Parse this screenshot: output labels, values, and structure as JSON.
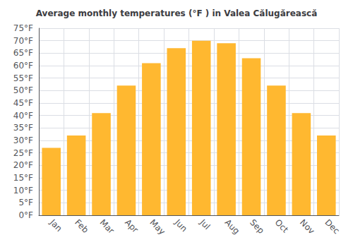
{
  "chart_data": {
    "type": "bar",
    "title": "Average monthly temperatures (°F ) in Valea Călugărească",
    "categories": [
      "Jan",
      "Feb",
      "Mar",
      "Apr",
      "May",
      "Jun",
      "Jul",
      "Aug",
      "Sep",
      "Oct",
      "Nov",
      "Dec"
    ],
    "values": [
      27,
      32,
      41,
      52,
      61,
      67,
      70,
      69,
      63,
      52,
      41,
      32
    ],
    "color": "#FFB830",
    "ylim": [
      0,
      75
    ],
    "yticks": [
      {
        "value": 0,
        "label": "0°F"
      },
      {
        "value": 5,
        "label": "5°F"
      },
      {
        "value": 10,
        "label": "10°F"
      },
      {
        "value": 15,
        "label": "15°F"
      },
      {
        "value": 20,
        "label": "20°F"
      },
      {
        "value": 25,
        "label": "25°F"
      },
      {
        "value": 30,
        "label": "30°F"
      },
      {
        "value": 35,
        "label": "35°F"
      },
      {
        "value": 40,
        "label": "40°F"
      },
      {
        "value": 45,
        "label": "45°F"
      },
      {
        "value": 50,
        "label": "50°F"
      },
      {
        "value": 55,
        "label": "55°F"
      },
      {
        "value": 60,
        "label": "60°F"
      },
      {
        "value": 65,
        "label": "65°F"
      },
      {
        "value": 70,
        "label": "70°F"
      },
      {
        "value": 75,
        "label": "75°F"
      }
    ],
    "grid": true
  }
}
